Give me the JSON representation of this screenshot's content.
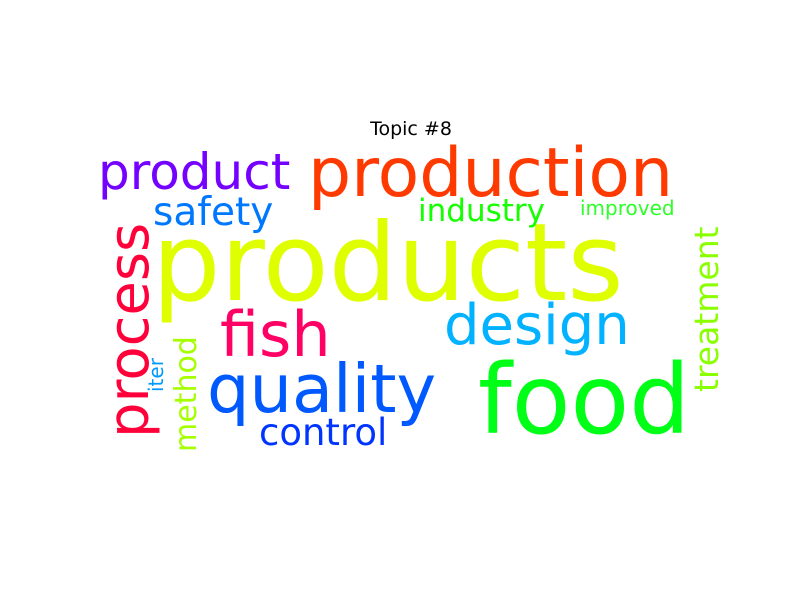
{
  "title": "Topic #8",
  "words": [
    {
      "text": "products",
      "color": "#dfff00"
    },
    {
      "text": "production",
      "color": "#ff3a00"
    },
    {
      "text": "food",
      "color": "#00ff16"
    },
    {
      "text": "quality",
      "color": "#0058ff"
    },
    {
      "text": "design",
      "color": "#00b2ff"
    },
    {
      "text": "product",
      "color": "#7400ff"
    },
    {
      "text": "fish",
      "color": "#ff0064"
    },
    {
      "text": "process",
      "color": "#ff003a"
    },
    {
      "text": "safety",
      "color": "#0077ff"
    },
    {
      "text": "control",
      "color": "#0035ff"
    },
    {
      "text": "industry",
      "color": "#14ff00"
    },
    {
      "text": "treatment",
      "color": "#8aff00"
    },
    {
      "text": "method",
      "color": "#a6ff00"
    },
    {
      "text": "improved",
      "color": "#2dff2a"
    },
    {
      "text": "iter",
      "color": "#0099ff"
    }
  ]
}
